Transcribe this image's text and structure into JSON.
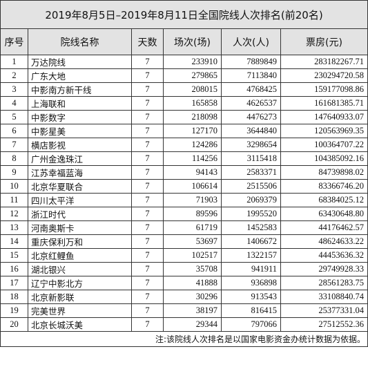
{
  "title": "2019年8月5日–2019年8月11日全国院线人次排名(前20名)",
  "headers": {
    "rank": "序号",
    "name": "院线名称",
    "days": "天数",
    "shows": "场次(场)",
    "admissions": "人次(人)",
    "box_office": "票房(元)"
  },
  "rows": [
    {
      "rank": "1",
      "name": "万达院线",
      "days": "7",
      "shows": "233910",
      "admissions": "7889849",
      "box_office": "283182267.71"
    },
    {
      "rank": "2",
      "name": "广东大地",
      "days": "7",
      "shows": "279865",
      "admissions": "7113840",
      "box_office": "230294720.58"
    },
    {
      "rank": "3",
      "name": "中影南方新干线",
      "days": "7",
      "shows": "208015",
      "admissions": "4768425",
      "box_office": "159177098.86"
    },
    {
      "rank": "4",
      "name": "上海联和",
      "days": "7",
      "shows": "165858",
      "admissions": "4626537",
      "box_office": "161681385.71"
    },
    {
      "rank": "5",
      "name": "中影数字",
      "days": "7",
      "shows": "218098",
      "admissions": "4476273",
      "box_office": "147640933.07"
    },
    {
      "rank": "6",
      "name": "中影星美",
      "days": "7",
      "shows": "127170",
      "admissions": "3644840",
      "box_office": "120563969.35"
    },
    {
      "rank": "7",
      "name": "横店影视",
      "days": "7",
      "shows": "124286",
      "admissions": "3298654",
      "box_office": "100364707.22"
    },
    {
      "rank": "8",
      "name": "广州金逸珠江",
      "days": "7",
      "shows": "114256",
      "admissions": "3115418",
      "box_office": "104385092.16"
    },
    {
      "rank": "9",
      "name": "江苏幸福蓝海",
      "days": "7",
      "shows": "94143",
      "admissions": "2583371",
      "box_office": "84739898.02"
    },
    {
      "rank": "10",
      "name": "北京华夏联合",
      "days": "7",
      "shows": "106614",
      "admissions": "2515506",
      "box_office": "83366746.20"
    },
    {
      "rank": "11",
      "name": "四川太平洋",
      "days": "7",
      "shows": "71903",
      "admissions": "2069379",
      "box_office": "68384025.12"
    },
    {
      "rank": "12",
      "name": "浙江时代",
      "days": "7",
      "shows": "89596",
      "admissions": "1995520",
      "box_office": "63430648.80"
    },
    {
      "rank": "13",
      "name": "河南奥斯卡",
      "days": "7",
      "shows": "61719",
      "admissions": "1452583",
      "box_office": "44176462.57"
    },
    {
      "rank": "14",
      "name": "重庆保利万和",
      "days": "7",
      "shows": "53697",
      "admissions": "1406672",
      "box_office": "48624633.22"
    },
    {
      "rank": "15",
      "name": "北京红鲤鱼",
      "days": "7",
      "shows": "102517",
      "admissions": "1322157",
      "box_office": "44453636.32"
    },
    {
      "rank": "16",
      "name": "湖北银兴",
      "days": "7",
      "shows": "35708",
      "admissions": "941911",
      "box_office": "29749928.33"
    },
    {
      "rank": "17",
      "name": "辽宁中影北方",
      "days": "7",
      "shows": "41888",
      "admissions": "936898",
      "box_office": "28561283.75"
    },
    {
      "rank": "18",
      "name": "北京新影联",
      "days": "7",
      "shows": "30296",
      "admissions": "913543",
      "box_office": "33108840.74"
    },
    {
      "rank": "19",
      "name": "完美世界",
      "days": "7",
      "shows": "38197",
      "admissions": "816415",
      "box_office": "25377331.04"
    },
    {
      "rank": "20",
      "name": "北京长城沃美",
      "days": "7",
      "shows": "29344",
      "admissions": "797066",
      "box_office": "27512552.36"
    }
  ],
  "note": "注:该院线人次排名是以国家电影资金办统计数据为依据。"
}
